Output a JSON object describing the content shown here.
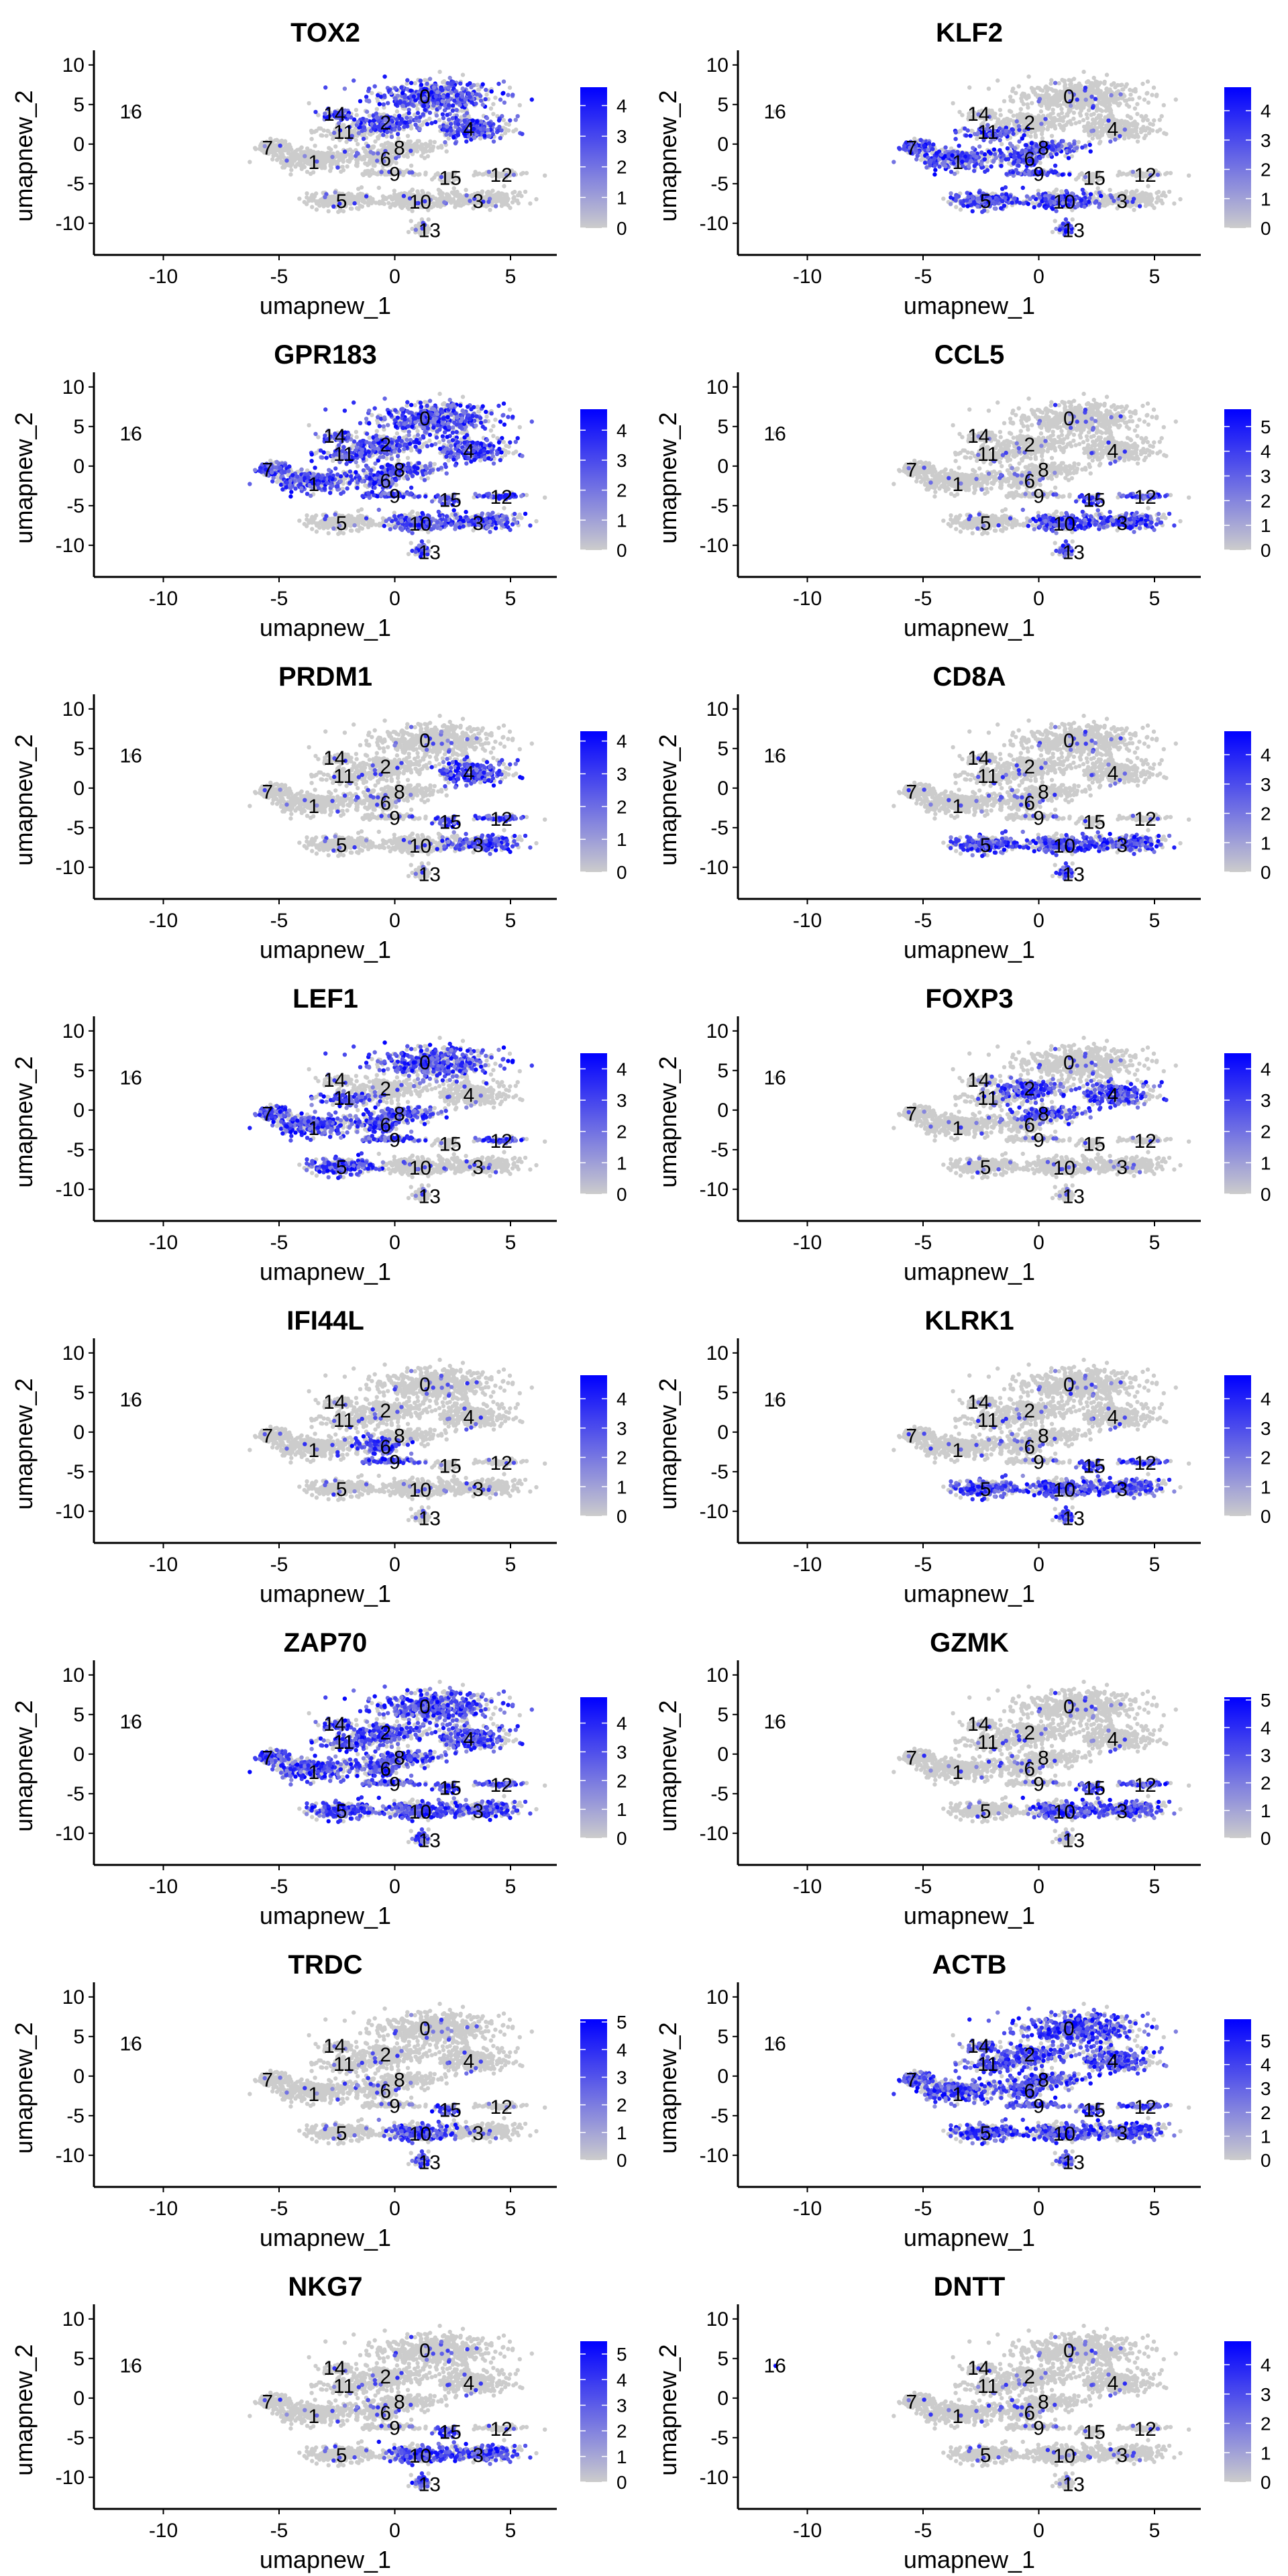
{
  "chart_data": {
    "type": "scatter",
    "layout": {
      "columns": 2,
      "rows": 8
    },
    "xlabel": "umapnew_1",
    "ylabel": "umapnew_2",
    "xlim": [
      -13,
      7
    ],
    "ylim": [
      -14,
      11
    ],
    "xticks": [
      -10,
      -5,
      0,
      5
    ],
    "yticks": [
      -10,
      -5,
      0,
      5,
      10
    ],
    "colors": {
      "low": "#cccccc",
      "high": "#0000ff",
      "axis": "#000000"
    },
    "clusters": [
      {
        "id": "0",
        "label_x": 1.3,
        "label_y": 6.0
      },
      {
        "id": "1",
        "label_x": -3.5,
        "label_y": -2.3
      },
      {
        "id": "2",
        "label_x": -0.4,
        "label_y": 2.7
      },
      {
        "id": "3",
        "label_x": 3.6,
        "label_y": -7.2
      },
      {
        "id": "4",
        "label_x": 3.2,
        "label_y": 1.9
      },
      {
        "id": "5",
        "label_x": -2.3,
        "label_y": -7.2
      },
      {
        "id": "6",
        "label_x": -0.4,
        "label_y": -1.9
      },
      {
        "id": "7",
        "label_x": -5.5,
        "label_y": -0.5
      },
      {
        "id": "8",
        "label_x": 0.2,
        "label_y": -0.5
      },
      {
        "id": "9",
        "label_x": 0.0,
        "label_y": -3.8
      },
      {
        "id": "10",
        "label_x": 1.1,
        "label_y": -7.3
      },
      {
        "id": "11",
        "label_x": -2.2,
        "label_y": 1.5
      },
      {
        "id": "12",
        "label_x": 4.6,
        "label_y": -3.9
      },
      {
        "id": "13",
        "label_x": 1.5,
        "label_y": -10.9
      },
      {
        "id": "14",
        "label_x": -2.6,
        "label_y": 3.8
      },
      {
        "id": "15",
        "label_x": 2.4,
        "label_y": -4.3
      },
      {
        "id": "16",
        "label_x": -11.4,
        "label_y": 4.1
      }
    ],
    "panels": [
      {
        "gene": "TOX2",
        "legend_max": 4.6,
        "legend_ticks": [
          0,
          1,
          2,
          3,
          4
        ],
        "high_clusters": [
          "0",
          "4",
          "2",
          "14"
        ]
      },
      {
        "gene": "KLF2",
        "legend_max": 4.8,
        "legend_ticks": [
          0,
          1,
          2,
          3,
          4
        ],
        "high_clusters": [
          "1",
          "7",
          "6",
          "8",
          "9",
          "5",
          "10",
          "11",
          "13"
        ]
      },
      {
        "gene": "GPR183",
        "legend_max": 4.7,
        "legend_ticks": [
          0,
          1,
          2,
          3,
          4
        ],
        "high_clusters": [
          "0",
          "2",
          "4",
          "1",
          "7",
          "8",
          "6",
          "11",
          "14",
          "9",
          "15",
          "12",
          "3",
          "10",
          "13"
        ]
      },
      {
        "gene": "CCL5",
        "legend_max": 5.7,
        "legend_ticks": [
          0,
          1,
          2,
          3,
          4,
          5
        ],
        "high_clusters": [
          "3",
          "15",
          "10",
          "13",
          "12"
        ]
      },
      {
        "gene": "PRDM1",
        "legend_max": 4.3,
        "legend_ticks": [
          0,
          1,
          2,
          3,
          4
        ],
        "high_clusters": [
          "4",
          "3",
          "15",
          "12"
        ]
      },
      {
        "gene": "CD8A",
        "legend_max": 4.8,
        "legend_ticks": [
          0,
          1,
          2,
          3,
          4
        ],
        "high_clusters": [
          "5",
          "10",
          "3",
          "13"
        ]
      },
      {
        "gene": "LEF1",
        "legend_max": 4.5,
        "legend_ticks": [
          0,
          1,
          2,
          3,
          4
        ],
        "high_clusters": [
          "1",
          "7",
          "5",
          "6",
          "8",
          "9",
          "11",
          "12",
          "0"
        ]
      },
      {
        "gene": "FOXP3",
        "legend_max": 4.5,
        "legend_ticks": [
          0,
          1,
          2,
          3,
          4
        ],
        "high_clusters": [
          "8",
          "2",
          "4"
        ]
      },
      {
        "gene": "IFI44L",
        "legend_max": 4.8,
        "legend_ticks": [
          0,
          1,
          2,
          3,
          4
        ],
        "high_clusters": [
          "9",
          "6"
        ]
      },
      {
        "gene": "KLRK1",
        "legend_max": 4.8,
        "legend_ticks": [
          0,
          1,
          2,
          3,
          4
        ],
        "high_clusters": [
          "5",
          "10",
          "3",
          "15",
          "13",
          "12"
        ]
      },
      {
        "gene": "ZAP70",
        "legend_max": 4.9,
        "legend_ticks": [
          0,
          1,
          2,
          3,
          4
        ],
        "high_clusters": [
          "0",
          "1",
          "2",
          "3",
          "4",
          "5",
          "6",
          "7",
          "8",
          "9",
          "10",
          "11",
          "12",
          "13",
          "14",
          "15"
        ]
      },
      {
        "gene": "GZMK",
        "legend_max": 5.1,
        "legend_ticks": [
          0,
          1,
          2,
          3,
          4,
          5
        ],
        "high_clusters": [
          "3",
          "15",
          "12",
          "10"
        ]
      },
      {
        "gene": "TRDC",
        "legend_max": 5.1,
        "legend_ticks": [
          0,
          1,
          2,
          3,
          4,
          5
        ],
        "high_clusters": [
          "13",
          "15",
          "10"
        ]
      },
      {
        "gene": "ACTB",
        "legend_max": 5.9,
        "legend_ticks": [
          0,
          1,
          2,
          3,
          4,
          5
        ],
        "high_clusters": [
          "0",
          "1",
          "2",
          "3",
          "4",
          "5",
          "6",
          "7",
          "8",
          "9",
          "10",
          "11",
          "12",
          "13",
          "14",
          "15"
        ]
      },
      {
        "gene": "NKG7",
        "legend_max": 5.5,
        "legend_ticks": [
          0,
          1,
          2,
          3,
          4,
          5
        ],
        "high_clusters": [
          "3",
          "15",
          "13",
          "10"
        ]
      },
      {
        "gene": "DNTT",
        "legend_max": 4.8,
        "legend_ticks": [
          0,
          1,
          2,
          3,
          4
        ],
        "high_clusters": [
          "16"
        ]
      }
    ]
  }
}
